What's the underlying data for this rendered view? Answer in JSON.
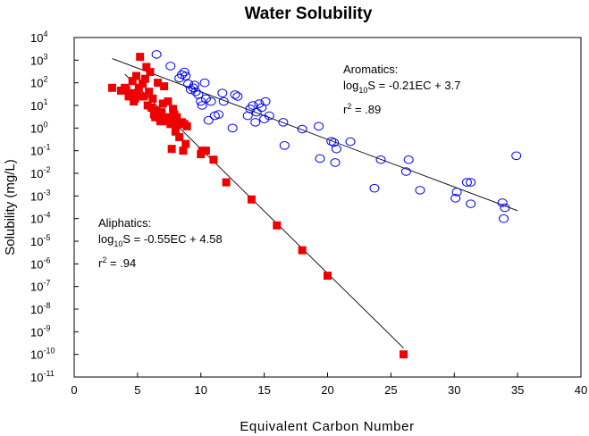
{
  "chart_data": {
    "type": "scatter",
    "title": "Water Solubility",
    "xlabel": "Equivalent Carbon Number",
    "ylabel": "Solubility (mg/L)",
    "xlim": [
      0,
      40
    ],
    "ylim": [
      1e-11,
      10000
    ],
    "yscale": "log",
    "x_ticks": [
      0,
      5,
      10,
      15,
      20,
      25,
      30,
      35,
      40
    ],
    "y_tick_exponents": [
      4,
      3,
      2,
      1,
      0,
      -1,
      -2,
      -3,
      -4,
      -5,
      -6,
      -7,
      -8,
      -9,
      -10,
      -11
    ],
    "y_tick_base": "10",
    "grid": false,
    "series": [
      {
        "name": "Aromatics",
        "marker": "open-circle",
        "color": "#0000ee",
        "points": [
          [
            6.5,
            1800
          ],
          [
            7.6,
            550
          ],
          [
            8.3,
            160
          ],
          [
            8.5,
            230
          ],
          [
            8.7,
            300
          ],
          [
            8.8,
            200
          ],
          [
            9.0,
            90
          ],
          [
            9.2,
            50
          ],
          [
            9.4,
            60
          ],
          [
            9.5,
            80
          ],
          [
            9.6,
            40
          ],
          [
            9.8,
            30
          ],
          [
            10.0,
            15
          ],
          [
            10.1,
            10
          ],
          [
            10.3,
            100
          ],
          [
            10.4,
            20
          ],
          [
            10.6,
            2.2
          ],
          [
            10.8,
            15
          ],
          [
            11.1,
            3.5
          ],
          [
            11.4,
            4.0
          ],
          [
            11.7,
            35
          ],
          [
            11.8,
            15
          ],
          [
            12.5,
            1.0
          ],
          [
            12.7,
            30
          ],
          [
            12.9,
            25
          ],
          [
            13.7,
            3.5
          ],
          [
            13.9,
            7
          ],
          [
            14.1,
            10
          ],
          [
            14.3,
            1.8
          ],
          [
            14.4,
            5
          ],
          [
            14.6,
            12
          ],
          [
            14.8,
            8
          ],
          [
            15.0,
            2.5
          ],
          [
            15.1,
            15
          ],
          [
            15.4,
            3.5
          ],
          [
            16.5,
            1.8
          ],
          [
            16.6,
            0.17
          ],
          [
            18.0,
            0.9
          ],
          [
            19.3,
            1.2
          ],
          [
            19.4,
            0.045
          ],
          [
            20.3,
            0.26
          ],
          [
            20.5,
            0.23
          ],
          [
            20.6,
            0.03
          ],
          [
            20.7,
            0.12
          ],
          [
            21.8,
            0.25
          ],
          [
            23.7,
            0.0022
          ],
          [
            24.2,
            0.04
          ],
          [
            26.2,
            0.012
          ],
          [
            26.4,
            0.04
          ],
          [
            27.3,
            0.0018
          ],
          [
            30.1,
            0.0008
          ],
          [
            30.2,
            0.0015
          ],
          [
            31.0,
            0.004
          ],
          [
            31.3,
            0.004
          ],
          [
            31.3,
            0.00045
          ],
          [
            33.8,
            0.0005
          ],
          [
            33.9,
            0.0001
          ],
          [
            34.0,
            0.0003
          ],
          [
            34.9,
            0.06
          ]
        ]
      },
      {
        "name": "Aliphatics",
        "marker": "filled-square",
        "color": "#ee0000",
        "points": [
          [
            3.0,
            60
          ],
          [
            3.7,
            45
          ],
          [
            4.0,
            60
          ],
          [
            4.1,
            50
          ],
          [
            4.3,
            25
          ],
          [
            4.5,
            35
          ],
          [
            4.6,
            120
          ],
          [
            4.7,
            15
          ],
          [
            4.8,
            20
          ],
          [
            4.9,
            200
          ],
          [
            5.0,
            30
          ],
          [
            5.1,
            60
          ],
          [
            5.2,
            1400
          ],
          [
            5.3,
            25
          ],
          [
            5.4,
            90
          ],
          [
            5.5,
            25
          ],
          [
            5.6,
            150
          ],
          [
            5.7,
            500
          ],
          [
            5.8,
            10
          ],
          [
            5.9,
            40
          ],
          [
            6.0,
            300
          ],
          [
            6.1,
            8
          ],
          [
            6.2,
            20
          ],
          [
            6.3,
            4
          ],
          [
            6.4,
            3
          ],
          [
            6.5,
            6
          ],
          [
            6.6,
            100
          ],
          [
            6.7,
            3
          ],
          [
            6.8,
            2
          ],
          [
            6.9,
            5
          ],
          [
            7.0,
            12
          ],
          [
            7.1,
            70
          ],
          [
            7.2,
            2
          ],
          [
            7.3,
            3
          ],
          [
            7.4,
            15
          ],
          [
            7.5,
            2.5
          ],
          [
            7.6,
            1.5
          ],
          [
            7.7,
            0.12
          ],
          [
            7.8,
            7
          ],
          [
            7.9,
            4
          ],
          [
            8.0,
            0.7
          ],
          [
            8.1,
            3
          ],
          [
            8.2,
            1.5
          ],
          [
            8.3,
            0.4
          ],
          [
            8.5,
            1.8
          ],
          [
            8.6,
            0.1
          ],
          [
            8.7,
            1.5
          ],
          [
            8.8,
            0.2
          ],
          [
            8.9,
            1.2
          ],
          [
            10.0,
            0.07
          ],
          [
            10.1,
            0.1
          ],
          [
            10.4,
            0.1
          ],
          [
            11.0,
            0.04
          ],
          [
            12.0,
            0.004
          ],
          [
            14.0,
            0.0007
          ],
          [
            16.0,
            5e-05
          ],
          [
            18.0,
            4e-06
          ],
          [
            20.0,
            3e-07
          ],
          [
            26.0,
            1e-10
          ]
        ]
      }
    ],
    "regressions": [
      {
        "series": "Aromatics",
        "slope": -0.21,
        "intercept": 3.7,
        "x_range": [
          3,
          35
        ],
        "color": "#000000"
      },
      {
        "series": "Aliphatics",
        "slope": -0.55,
        "intercept": 4.58,
        "x_range": [
          4,
          26
        ],
        "color": "#000000"
      }
    ],
    "annotations": [
      {
        "name": "aromatics-annotation",
        "series_label": "Aromatics:",
        "eq_prefix": "log",
        "eq_sub": "10",
        "eq_rest": "S = -0.21EC + 3.7",
        "r2_prefix": "r",
        "r2_sup": "2",
        "r2_rest": " = .89"
      },
      {
        "name": "aliphatics-annotation",
        "series_label": "Aliphatics:",
        "eq_prefix": "log",
        "eq_sub": "10",
        "eq_rest": "S = -0.55EC + 4.58",
        "r2_prefix": "r",
        "r2_sup": "2",
        "r2_rest": " = .94"
      }
    ]
  }
}
